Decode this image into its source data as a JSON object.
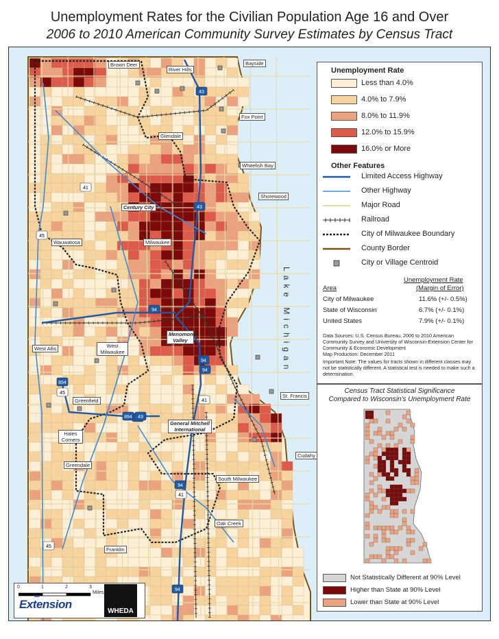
{
  "title": "Unemployment Rates for the Civilian Population Age 16 and Over",
  "subtitle": "2006 to 2010 American Community Survey Estimates by Census Tract",
  "colors": {
    "lt4": "#fcefd6",
    "r4_8": "#f7d39e",
    "r8_12": "#eba37f",
    "r12_16": "#dd5b4a",
    "r16": "#7c0a0a",
    "lake": "#dceef8",
    "highway": "#1f5aa6",
    "other_highway": "#3d8bd6",
    "major_road": "#e9d9a6",
    "county": "#7a5518",
    "gray": "#d6d6d6",
    "higher": "#7c0a0a",
    "lower": "#eba37f"
  },
  "places": [
    {
      "name": "Brown Deer"
    },
    {
      "name": "River Hills"
    },
    {
      "name": "Bayside"
    },
    {
      "name": "Fox Point"
    },
    {
      "name": "Glendale"
    },
    {
      "name": "Whitefish Bay"
    },
    {
      "name": "Shorewood"
    },
    {
      "name": "Century City"
    },
    {
      "name": "Wauwatosa"
    },
    {
      "name": "Milwaukee"
    },
    {
      "name": "Menomonee Valley"
    },
    {
      "name": "West Allis"
    },
    {
      "name": "West Milwaukee"
    },
    {
      "name": "Greenfield"
    },
    {
      "name": "St. Francis"
    },
    {
      "name": "General Mitchell International"
    },
    {
      "name": "Hales Corners"
    },
    {
      "name": "Greendale"
    },
    {
      "name": "Cudahy"
    },
    {
      "name": "South Milwaukee"
    },
    {
      "name": "Oak Creek"
    },
    {
      "name": "Franklin"
    }
  ],
  "lake_label": "Lake Michigan",
  "route_shields": [
    "43",
    "41",
    "43",
    "45",
    "94",
    "94",
    "94",
    "43",
    "894",
    "45",
    "41",
    "894",
    "43",
    "94",
    "41",
    "45",
    "94"
  ],
  "legend": {
    "unemployment_heading": "Unemployment Rate",
    "classes": [
      {
        "label": "Less than 4.0%"
      },
      {
        "label": "4.0% to 7.9%"
      },
      {
        "label": "8.0% to 11.9%"
      },
      {
        "label": "12.0% to 15.9%"
      },
      {
        "label": "16.0% or More"
      }
    ],
    "features_heading": "Other Features",
    "features": [
      {
        "label": "Limited Access Highway",
        "icon": "highway-line-icon"
      },
      {
        "label": "Other Highway",
        "icon": "other-highway-line-icon"
      },
      {
        "label": "Major Road",
        "icon": "major-road-line-icon"
      },
      {
        "label": "Railroad",
        "icon": "railroad-line-icon"
      },
      {
        "label": "City of Milwaukee Boundary",
        "icon": "city-boundary-line-icon"
      },
      {
        "label": "County Border",
        "icon": "county-border-line-icon"
      },
      {
        "label": "City or Village Centroid",
        "icon": "centroid-square-icon"
      }
    ],
    "table": {
      "col_rate_header": "Unemployment Rate",
      "col_area_header": "Area",
      "col_moe_header": "(Margin of Error)",
      "rows": [
        {
          "area": "City of Milwaukee",
          "value": "11.6% (+/- 0.5%)"
        },
        {
          "area": "State of Wisconsin",
          "value": "6.7% (+/- 0.1%)"
        },
        {
          "area": "United States",
          "value": "7.9% (+/- 0.1%)"
        }
      ]
    },
    "sources": "Data Sources: U.S. Census Bureau, 2006 to 2010 American Community Survey and University of Wisconsin-Extension Center for Community & Economic Development",
    "production": "Map Production: December 2011",
    "note": "Important Note: The values for tracts shown in different classes may not be statistically different. A statistical test is needed to make such a determination."
  },
  "inset": {
    "title_line1": "Census Tract Statistical Significance",
    "title_line2": "Compared to Wisconsin's Unemployment Rate",
    "items": [
      {
        "label": "Not Statistically Different at 90% Level"
      },
      {
        "label": "Higher than State at 90% Level"
      },
      {
        "label": "Lower than State at 90% Level"
      }
    ]
  },
  "scale": {
    "ticks": [
      "0",
      "1",
      "2",
      "3"
    ],
    "unit": "Miles"
  },
  "logos": {
    "extension_small": "uw",
    "extension": "Extension",
    "wheda": "WHEDA"
  }
}
